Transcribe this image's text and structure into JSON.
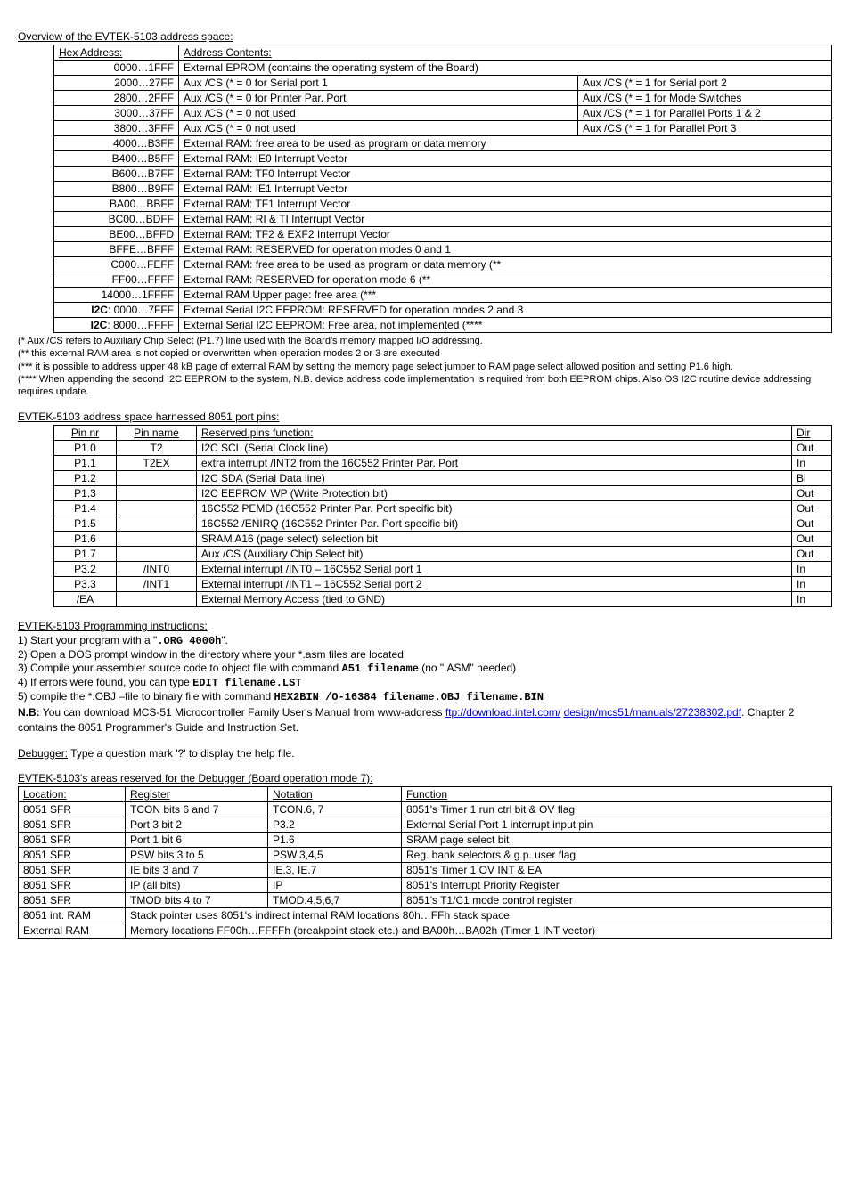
{
  "overview": {
    "title": "Overview of the EVTEK-5103 address space:",
    "headers": [
      "Hex Address:",
      "Address Contents:"
    ],
    "rows": [
      {
        "addr": "0000…1FFF",
        "c1": "External EPROM (contains the operating system of the Board)",
        "span": 2
      },
      {
        "addr": "2000…27FF",
        "c1": "Aux /CS (* = 0 for Serial port 1",
        "c2": "Aux /CS (* = 1 for Serial port 2"
      },
      {
        "addr": "2800…2FFF",
        "c1": "Aux /CS (* = 0 for Printer Par. Port",
        "c2": "Aux /CS (* = 1 for Mode Switches"
      },
      {
        "addr": "3000…37FF",
        "c1": "Aux /CS (* = 0 not used",
        "c2": "Aux /CS (* = 1 for Parallel Ports 1 & 2"
      },
      {
        "addr": "3800…3FFF",
        "c1": "Aux /CS (* = 0 not used",
        "c2": "Aux /CS (* = 1 for Parallel Port 3"
      },
      {
        "addr": "4000…B3FF",
        "c1": "External RAM: free area to be used as program or data memory",
        "span": 2
      },
      {
        "addr": "B400…B5FF",
        "c1": "External RAM: IE0 Interrupt Vector",
        "span": 2
      },
      {
        "addr": "B600…B7FF",
        "c1": "External RAM: TF0 Interrupt Vector",
        "span": 2
      },
      {
        "addr": "B800…B9FF",
        "c1": "External RAM: IE1 Interrupt Vector",
        "span": 2
      },
      {
        "addr": "BA00…BBFF",
        "c1": "External RAM: TF1 Interrupt Vector",
        "span": 2
      },
      {
        "addr": "BC00…BDFF",
        "c1": "External RAM: RI & TI Interrupt Vector",
        "span": 2
      },
      {
        "addr": "BE00…BFFD",
        "c1": "External RAM: TF2 & EXF2 Interrupt Vector",
        "span": 2
      },
      {
        "addr": "BFFE…BFFF",
        "c1": "External RAM: RESERVED for operation modes 0 and 1",
        "span": 2
      },
      {
        "addr": "C000…FEFF",
        "c1": "External RAM: free area to be used as program or data memory (**",
        "span": 2
      },
      {
        "addr": "FF00…FFFF",
        "c1": "External RAM: RESERVED for operation mode 6 (**",
        "span": 2
      },
      {
        "addr": "14000…1FFFF",
        "c1": "External RAM Upper page: free area (***",
        "span": 2
      },
      {
        "addr_html": "<b>I2C</b>: 0000…7FFF",
        "c1": "External Serial I2C EEPROM: RESERVED for operation modes 2 and 3",
        "span": 2
      },
      {
        "addr_html": "<b>I2C</b>: 8000…FFFF",
        "c1": "External Serial I2C EEPROM: Free area, not implemented (****",
        "span": 2
      }
    ],
    "footnotes": [
      "(* Aux /CS refers to Auxiliary Chip Select (P1.7) line used with the Board's memory mapped I/O addressing.",
      "(** this external RAM area is not copied or overwritten when operation modes 2 or 3 are executed",
      "(*** it is possible to address upper 48 kB page of external RAM by setting the memory page select jumper to RAM page select allowed position and setting P1.6 high.",
      "(**** When appending the second I2C EEPROM to the system, N.B. device address code implementation is required from both EEPROM chips. Also OS I2C routine device addressing requires update."
    ]
  },
  "pins": {
    "title": "EVTEK-5103 address space harnessed 8051 port pins:",
    "headers": [
      "Pin nr",
      "Pin name",
      "Reserved pins function:",
      "Dir"
    ],
    "rows": [
      [
        "P1.0",
        "T2",
        "I2C SCL (Serial Clock line)",
        "Out"
      ],
      [
        "P1.1",
        "T2EX",
        "extra interrupt /INT2 from the 16C552 Printer Par. Port",
        "In"
      ],
      [
        "P1.2",
        "",
        "I2C SDA (Serial Data line)",
        "Bi"
      ],
      [
        "P1.3",
        "",
        "I2C EEPROM WP (Write Protection bit)",
        "Out"
      ],
      [
        "P1.4",
        "",
        "16C552 PEMD (16C552 Printer Par. Port specific bit)",
        "Out"
      ],
      [
        "P1.5",
        "",
        "16C552 /ENIRQ (16C552 Printer Par. Port specific bit)",
        "Out"
      ],
      [
        "P1.6",
        "",
        "SRAM A16 (page select) selection bit",
        "Out"
      ],
      [
        "P1.7",
        "",
        "Aux /CS (Auxiliary Chip Select bit)",
        "Out"
      ],
      [
        "P3.2",
        "/INT0",
        "External interrupt /INT0 – 16C552 Serial port 1",
        "In"
      ],
      [
        "P3.3",
        "/INT1",
        "External interrupt /INT1 – 16C552 Serial port 2",
        "In"
      ],
      [
        "/EA",
        "",
        "External Memory Access (tied to GND)",
        "In"
      ]
    ]
  },
  "programming": {
    "title": "EVTEK-5103 Programming instructions:",
    "steps": [
      {
        "n": "1)",
        "pre": "Start your program with a \"",
        "code": ".ORG 4000h",
        "post": "\"."
      },
      {
        "n": "2)",
        "pre": "Open a DOS prompt window in the directory where your *.asm files are located"
      },
      {
        "n": "3)",
        "pre": "Compile your assembler source code to object file with command ",
        "code": "A51 filename",
        "post": " (no \".ASM\" needed)"
      },
      {
        "n": "4)",
        "pre": "If errors were found, you can type ",
        "code": "EDIT filename.LST"
      },
      {
        "n": "5)",
        "pre": "compile the *.OBJ –file to binary file with command ",
        "code": "HEX2BIN /O-16384 filename.OBJ filename.BIN"
      }
    ],
    "nb_label": "N.B:",
    "nb_text1": " You can download MCS-51 Microcontroller Family User's Manual from www-address ",
    "nb_link1": "ftp://download.intel.com/",
    "nb_link2": "design/mcs51/manuals/27238302.pdf",
    "nb_text2": ". Chapter 2 contains the 8051 Programmer's Guide and Instruction Set."
  },
  "debugger_line": {
    "label": "Debugger:",
    "text": " Type a question mark '?' to display the help file."
  },
  "debugger_table": {
    "title": "EVTEK-5103's areas reserved for the Debugger (Board operation mode 7):",
    "headers": [
      "Location:",
      "Register",
      "Notation",
      "Function"
    ],
    "rows": [
      [
        "8051 SFR",
        "TCON bits 6 and 7",
        "TCON.6, 7",
        "8051's Timer 1 run ctrl bit & OV flag"
      ],
      [
        "8051 SFR",
        "Port 3 bit 2",
        "P3.2",
        "External Serial Port 1 interrupt input pin"
      ],
      [
        "8051 SFR",
        "Port 1 bit 6",
        "P1.6",
        "SRAM page select bit"
      ],
      [
        "8051 SFR",
        "PSW bits 3 to 5",
        "PSW.3,4,5",
        "Reg. bank selectors & g.p. user flag"
      ],
      [
        "8051 SFR",
        "IE bits 3 and 7",
        "IE.3, IE.7",
        "8051's Timer 1 OV INT & EA"
      ],
      [
        "8051 SFR",
        "IP (all bits)",
        "IP",
        "8051's Interrupt Priority Register"
      ],
      [
        "8051 SFR",
        "TMOD bits 4 to 7",
        "TMOD.4,5,6,7",
        "8051's T1/C1 mode control register"
      ]
    ],
    "span_rows": [
      [
        "8051 int. RAM",
        "Stack pointer uses 8051's indirect internal RAM locations 80h…FFh stack space"
      ],
      [
        "External RAM",
        "Memory locations FF00h…FFFFh (breakpoint stack etc.) and BA00h…BA02h (Timer 1 INT vector)"
      ]
    ]
  }
}
